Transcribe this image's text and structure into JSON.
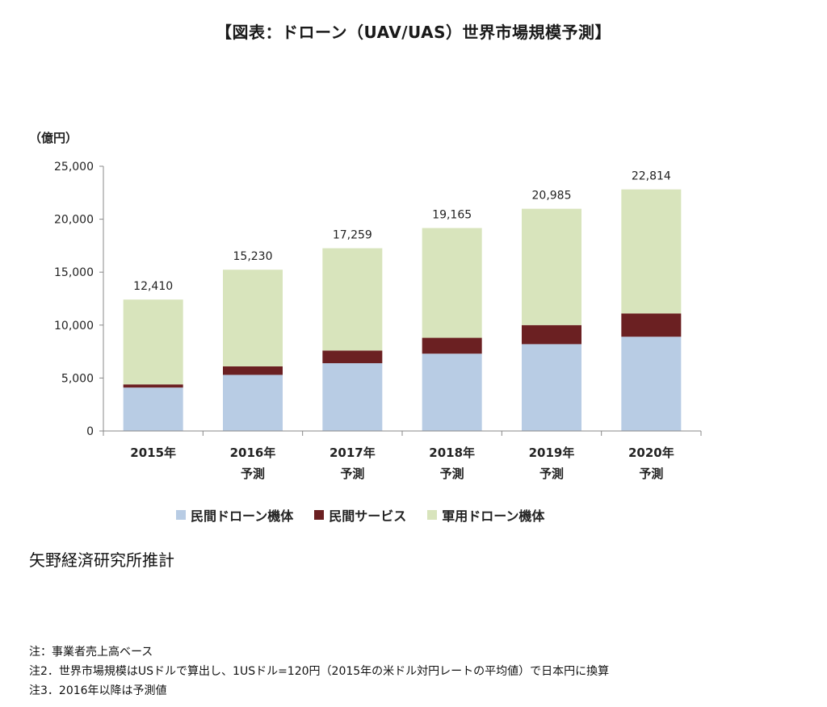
{
  "page": {
    "title": "【図表：ドローン（UAV/UAS）世界市場規模予測】",
    "unit": "（億円）",
    "source": "矢野経済研究所推計",
    "notes": [
      "注：事業者売上高ベース",
      "注2．世界市場規模はUSドルで算出し、1USドル=120円（2015年の米ドル対円レートの平均値）で日本円に換算",
      "注3．2016年以降は予測値"
    ]
  },
  "colors": {
    "civil_drone": "#b8cce4",
    "civil_service": "#6b2022",
    "military_drone": "#d8e4bc",
    "axis": "#888888"
  },
  "chart_data": {
    "type": "bar",
    "stacked": true,
    "title": "【図表：ドローン（UAV/UAS）世界市場規模予測】",
    "ylabel": "（億円）",
    "ylim": [
      0,
      25000
    ],
    "yticks": [
      0,
      5000,
      10000,
      15000,
      20000,
      25000
    ],
    "ytick_labels": [
      "0",
      "5,000",
      "10,000",
      "15,000",
      "20,000",
      "25,000"
    ],
    "categories": [
      [
        "2015年"
      ],
      [
        "2016年",
        "予測"
      ],
      [
        "2017年",
        "予測"
      ],
      [
        "2018年",
        "予測"
      ],
      [
        "2019年",
        "予測"
      ],
      [
        "2020年",
        "予測"
      ]
    ],
    "series": [
      {
        "name": "民間ドローン機体",
        "color": "#b8cce4",
        "values": [
          4100,
          5300,
          6400,
          7300,
          8200,
          8900
        ]
      },
      {
        "name": "民間サービス",
        "color": "#6b2022",
        "values": [
          300,
          800,
          1200,
          1500,
          1800,
          2200
        ]
      },
      {
        "name": "軍用ドローン機体",
        "color": "#d8e4bc",
        "values": [
          8010,
          9130,
          9659,
          10365,
          10985,
          11714
        ]
      }
    ],
    "totals": [
      12410,
      15230,
      17259,
      19165,
      20985,
      22814
    ],
    "total_labels": [
      "12,410",
      "15,230",
      "17,259",
      "19,165",
      "20,985",
      "22,814"
    ],
    "legend_position": "bottom",
    "grid": false
  }
}
